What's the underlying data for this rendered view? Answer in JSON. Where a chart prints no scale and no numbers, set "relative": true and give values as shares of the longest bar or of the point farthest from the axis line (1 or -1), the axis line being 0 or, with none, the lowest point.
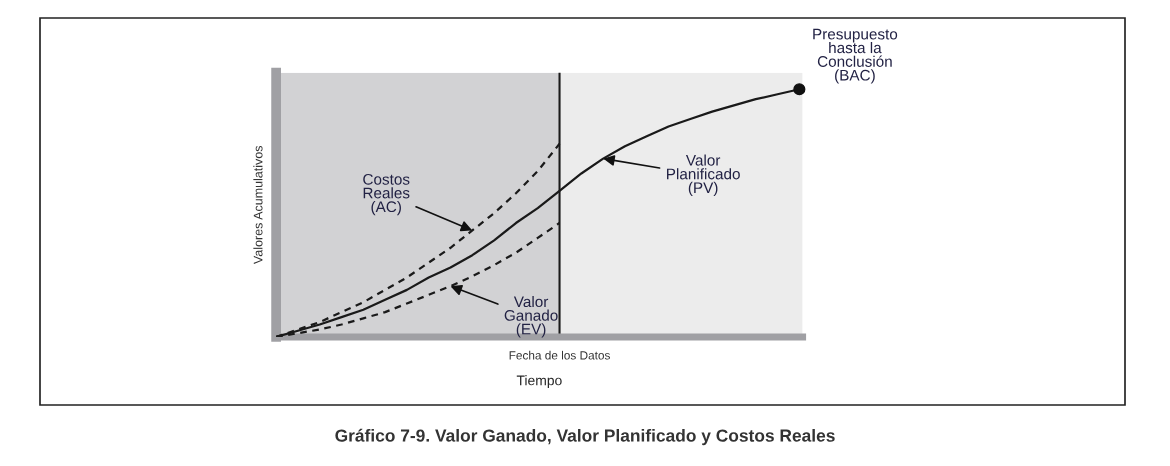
{
  "chart_data": {
    "type": "line",
    "title": "Gráfico 7-9. Valor Ganado, Valor Planificado y Costos Reales",
    "xlabel": "Tiempo",
    "ylabel": "Valores Acumulativos",
    "relative": true,
    "categories": [
      null,
      null,
      null,
      null,
      null,
      null,
      null,
      null,
      null,
      null,
      null,
      null,
      null,
      null,
      null,
      null,
      null,
      null,
      null,
      null,
      null,
      null,
      null,
      null,
      null
    ],
    "series": [
      {
        "color": "#1a1a1a",
        "line_style": "solid",
        "values": [
          0,
          0.025,
          0.05,
          0.08,
          0.11,
          0.15,
          0.19,
          0.24,
          0.28,
          0.33,
          0.39,
          0.46,
          0.52,
          0.59,
          0.66,
          0.72,
          0.77,
          0.81,
          0.85,
          0.88,
          0.91,
          0.935,
          0.96,
          0.98,
          1.0
        ]
      },
      {
        "color": "#1a1a1a",
        "line_style": "dashed",
        "values": [
          0,
          0.03,
          0.06,
          0.1,
          0.14,
          0.19,
          0.24,
          0.3,
          0.36,
          0.43,
          0.5,
          0.58,
          0.67,
          0.78,
          null,
          null,
          null,
          null,
          null,
          null,
          null,
          null,
          null,
          null,
          null
        ]
      },
      {
        "color": "#1a1a1a",
        "line_style": "dashed",
        "values": [
          0,
          0.015,
          0.03,
          0.05,
          0.075,
          0.1,
          0.135,
          0.17,
          0.205,
          0.245,
          0.29,
          0.34,
          0.4,
          0.46,
          null,
          null,
          null,
          null,
          null,
          null,
          null,
          null,
          null,
          null,
          null
        ]
      }
    ],
    "annotations": [
      "Costos\nReales\n(AC)",
      "Valor\nPlanificado\n(PV)",
      "Valor\nGanado\n(EV)",
      "Presupuesto\nhasta la\nConclusión\n(BAC)",
      "Fecha de los Datos"
    ]
  }
}
